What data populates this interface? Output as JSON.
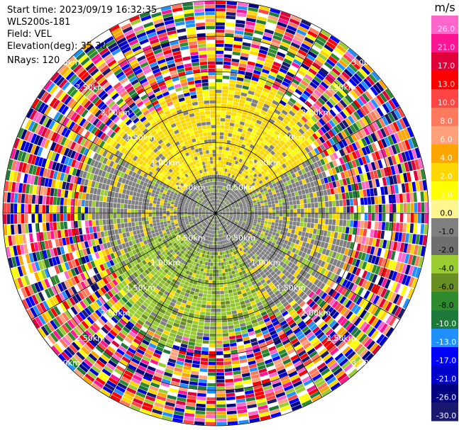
{
  "header": {
    "start_time": "Start time: 2023/09/19 16:32:35",
    "instrument": "WLS200s-181",
    "field": "Field: VEL",
    "elevation": "Elevation(deg): 35.30",
    "nrays": "NRays: 120"
  },
  "chart_data": {
    "type": "heatmap",
    "projection": "polar-ppi",
    "field": "VEL",
    "unit": "m/s",
    "nrays": 120,
    "max_range_km": 3.0,
    "range_rings_km": [
      0.5,
      1.0,
      1.5,
      2.0,
      2.5,
      3.0
    ],
    "spoke_angles_deg": [
      0,
      30,
      60,
      90,
      120,
      150,
      180,
      210,
      240,
      270,
      300,
      330
    ],
    "ring_labels": [
      "0.50km",
      "1.00km",
      "1.50km",
      "2.00km",
      "2.50km",
      "3.00km"
    ],
    "colorbar": {
      "unit_label": "m/s",
      "ticks": [
        "26.0",
        "21.0",
        "17.0",
        "13.0",
        "10.0",
        "8.0",
        "6.0",
        "4.0",
        "2.0",
        "1.0",
        "0.0",
        "-1.0",
        "-2.0",
        "-4.0",
        "-6.0",
        "-8.0",
        "-10.0",
        "-13.0",
        "-17.0",
        "-21.0",
        "-26.0",
        "-30.0"
      ],
      "colors": [
        "#ff66cc",
        "#ff1493",
        "#e0003a",
        "#ff0000",
        "#ff4444",
        "#ff7a5c",
        "#ffa07a",
        "#ffa500",
        "#ffd700",
        "#ffff00",
        "#fff68f",
        "#808080",
        "#6f6f6f",
        "#9acd32",
        "#6b8e23",
        "#2e8b2e",
        "#1e7a3a",
        "#1e90ff",
        "#0000ff",
        "#0000cd",
        "#000080",
        "#191970"
      ]
    },
    "pattern": {
      "inner_region_km": 0.55,
      "yellow_sector_deg": [
        300,
        60
      ],
      "green_sector_deg": [
        150,
        250
      ],
      "noise_start_km": 1.8
    }
  }
}
